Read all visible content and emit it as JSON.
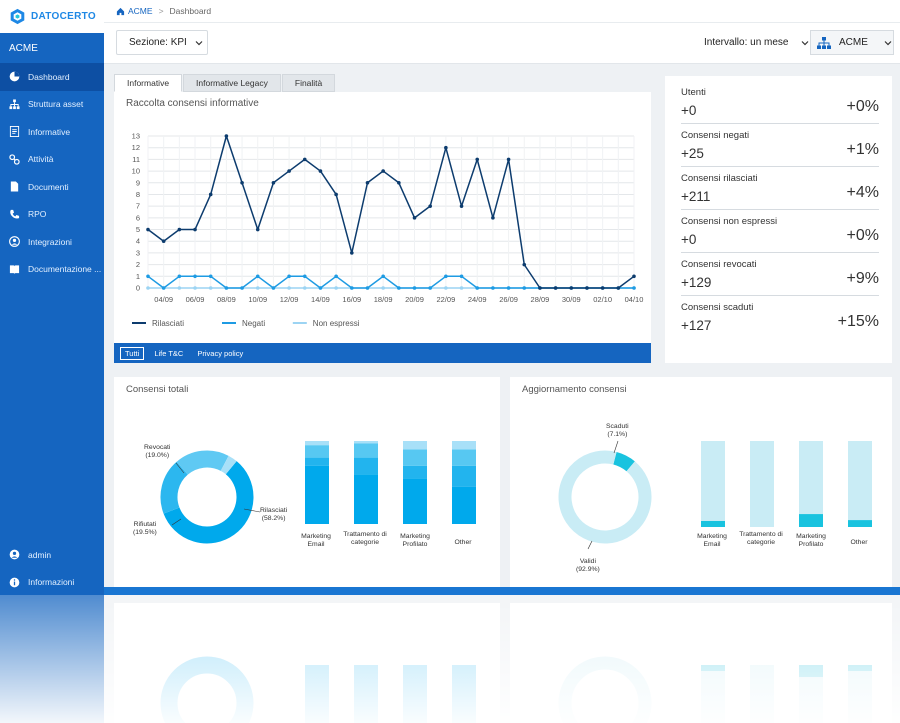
{
  "brand": {
    "name": "DATOCERTO"
  },
  "sidebar": {
    "org": "ACME",
    "items": [
      {
        "label": "Dashboard",
        "icon": "dashboard-icon",
        "active": true
      },
      {
        "label": "Struttura asset",
        "icon": "sitemap-icon"
      },
      {
        "label": "Informative",
        "icon": "document-icon"
      },
      {
        "label": "Attività",
        "icon": "link-icon"
      },
      {
        "label": "Documenti",
        "icon": "file-icon"
      },
      {
        "label": "RPO",
        "icon": "phone-icon"
      },
      {
        "label": "Integrazioni",
        "icon": "user-circle-icon"
      },
      {
        "label": "Documentazione ...",
        "icon": "book-icon"
      }
    ],
    "bottom_items": [
      {
        "label": "admin",
        "icon": "user-icon"
      },
      {
        "label": "Informazioni",
        "icon": "info-icon"
      }
    ]
  },
  "breadcrumb": {
    "home": "ACME",
    "current": "Dashboard"
  },
  "toolbar": {
    "section": "Sezione: KPI",
    "interval": "Intervallo: un mese",
    "org": "ACME"
  },
  "tabs": [
    "Informative",
    "Informative Legacy",
    "Finalità"
  ],
  "line_chart_title": "Raccolta consensi informative",
  "filters": [
    "Tutti",
    "Life T&C",
    "Privacy policy"
  ],
  "chart_data": {
    "type": "line",
    "x": [
      "03/09",
      "04/09",
      "05/09",
      "06/09",
      "07/09",
      "08/09",
      "09/09",
      "10/09",
      "11/09",
      "12/09",
      "13/09",
      "14/09",
      "15/09",
      "16/09",
      "17/09",
      "18/09",
      "19/09",
      "20/09",
      "21/09",
      "22/09",
      "23/09",
      "24/09",
      "25/09",
      "26/09",
      "27/09",
      "28/09",
      "29/09",
      "30/09",
      "01/10",
      "02/10",
      "03/10",
      "04/10"
    ],
    "xticks": [
      "04/09",
      "06/09",
      "08/09",
      "10/09",
      "12/09",
      "14/09",
      "16/09",
      "18/09",
      "20/09",
      "22/09",
      "24/09",
      "26/09",
      "28/09",
      "30/09",
      "02/10",
      "04/10"
    ],
    "ylim": [
      0,
      13
    ],
    "yticks": [
      0,
      1,
      2,
      3,
      4,
      5,
      6,
      7,
      8,
      9,
      10,
      11,
      12,
      13
    ],
    "legend_position": "bottom-left",
    "series": [
      {
        "name": "Rilasciati",
        "color": "#0d3c6e",
        "values": [
          5,
          4,
          5,
          5,
          8,
          13,
          9,
          5,
          9,
          10,
          11,
          10,
          8,
          3,
          9,
          10,
          9,
          6,
          7,
          12,
          7,
          11,
          6,
          11,
          2,
          0,
          0,
          0,
          0,
          0,
          0,
          1
        ]
      },
      {
        "name": "Negati",
        "color": "#1e9be3",
        "values": [
          1,
          0,
          1,
          1,
          1,
          0,
          0,
          1,
          0,
          1,
          1,
          0,
          1,
          0,
          0,
          1,
          0,
          0,
          0,
          1,
          1,
          0,
          0,
          0,
          0,
          0,
          0,
          0,
          0,
          0,
          0,
          0
        ]
      },
      {
        "name": "Non espressi",
        "color": "#9cd4f3",
        "values": [
          0,
          0,
          0,
          0,
          0,
          0,
          0,
          0,
          0,
          0,
          0,
          0,
          0,
          0,
          0,
          0,
          0,
          0,
          0,
          0,
          0,
          0,
          0,
          0,
          0,
          0,
          0,
          0,
          0,
          0,
          0,
          0
        ]
      }
    ]
  },
  "stats": [
    {
      "label": "Utenti",
      "value": "+0",
      "percent": "+0%"
    },
    {
      "label": "Consensi negati",
      "value": "+25",
      "percent": "+1%"
    },
    {
      "label": "Consensi rilasciati",
      "value": "+211",
      "percent": "+4%"
    },
    {
      "label": "Consensi non espressi",
      "value": "+0",
      "percent": "+0%"
    },
    {
      "label": "Consensi revocati",
      "value": "+129",
      "percent": "+9%"
    },
    {
      "label": "Consensi scaduti",
      "value": "+127",
      "percent": "+15%"
    }
  ],
  "consensi_totali": {
    "title": "Consensi totali",
    "donut": [
      {
        "label": "Rilasciati",
        "pct": "(58.2%)",
        "value": 58.2,
        "color": "#00a9ec"
      },
      {
        "label": "Rifiutati",
        "pct": "(19.5%)",
        "value": 19.5,
        "color": "#2cb7ef"
      },
      {
        "label": "Revocati",
        "pct": "(19.0%)",
        "value": 19.0,
        "color": "#5fc9f3"
      },
      {
        "label": "",
        "pct": "",
        "value": 3.3,
        "color": "#a8e0f8"
      }
    ],
    "bar_categories": [
      "Marketing Email",
      "Trattamento di categorie",
      "Marketing Profilato",
      "Other"
    ],
    "bar_stacks": [
      [
        0.7,
        0.1,
        0.15,
        0.05
      ],
      [
        0.6,
        0.2,
        0.17,
        0.03
      ],
      [
        0.55,
        0.15,
        0.2,
        0.1
      ],
      [
        0.45,
        0.25,
        0.2,
        0.1
      ]
    ],
    "bar_colors": [
      "#00a9ec",
      "#22b4ee",
      "#57c8f2",
      "#a8e0f8"
    ]
  },
  "aggiornamento": {
    "title": "Aggiornamento consensi",
    "donut": [
      {
        "label": "Scaduti",
        "pct": "(7.1%)",
        "value": 7.1,
        "color": "#19c3df"
      },
      {
        "label": "Validi",
        "pct": "(92.9%)",
        "value": 92.9,
        "color": "#c9ecf5"
      }
    ],
    "bar_categories": [
      "Marketing Email",
      "Trattamento di categorie",
      "Marketing Profilato",
      "Other"
    ],
    "bar_scaduti_fraction": [
      0.07,
      0,
      0.15,
      0.08
    ],
    "bar_colors": [
      "#c9ecf5",
      "#19c3df"
    ]
  }
}
